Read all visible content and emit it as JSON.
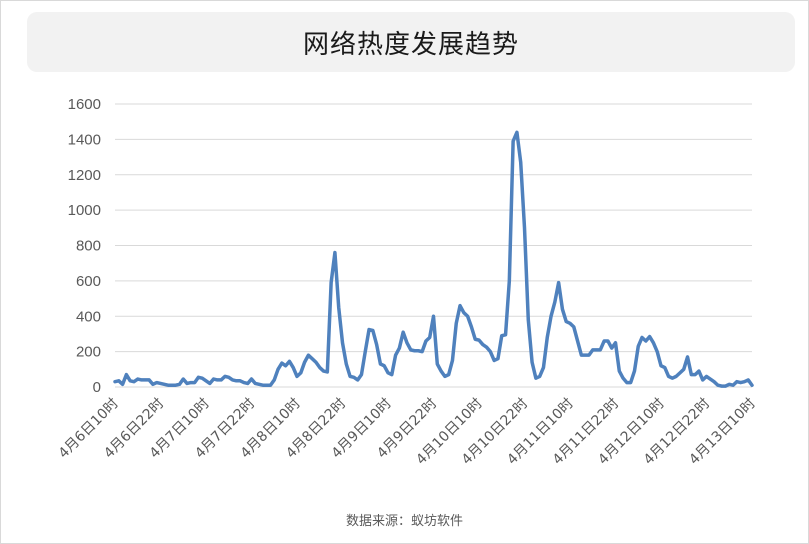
{
  "title": "网络热度发展趋势",
  "source": "数据来源：蚁坊软件",
  "colors": {
    "line": "#4f81bd",
    "grid": "#d9d9d9",
    "axis_text": "#595959",
    "title_bg": "#f2f2f2"
  },
  "chart_data": {
    "type": "line",
    "title": "网络热度发展趋势",
    "xlabel": "",
    "ylabel": "",
    "ylim": [
      0,
      1600
    ],
    "yticks": [
      0,
      200,
      400,
      600,
      800,
      1000,
      1200,
      1400,
      1600
    ],
    "grid": true,
    "legend": "none",
    "x_tick_labels": [
      "4月6日10时",
      "4月6日22时",
      "4月7日10时",
      "4月7日22时",
      "4月8日10时",
      "4月8日22时",
      "4月9日10时",
      "4月9日22时",
      "4月10日10时",
      "4月10日22时",
      "4月11日10时",
      "4月11日22时",
      "4月12日10时",
      "4月12日22时",
      "4月13日10时"
    ],
    "x_tick_index": [
      0,
      12,
      24,
      36,
      48,
      60,
      72,
      84,
      96,
      108,
      120,
      132,
      144,
      156,
      168
    ],
    "x_count": 169,
    "series": [
      {
        "values": [
          30,
          35,
          15,
          70,
          35,
          30,
          45,
          40,
          40,
          40,
          15,
          25,
          20,
          15,
          10,
          10,
          10,
          15,
          45,
          20,
          25,
          25,
          55,
          50,
          35,
          20,
          45,
          40,
          40,
          60,
          55,
          40,
          35,
          35,
          25,
          20,
          45,
          20,
          15,
          10,
          10,
          10,
          40,
          100,
          135,
          120,
          145,
          110,
          60,
          80,
          140,
          180,
          160,
          140,
          110,
          90,
          85,
          590,
          760,
          450,
          250,
          130,
          60,
          55,
          40,
          70,
          200,
          325,
          320,
          240,
          130,
          120,
          80,
          70,
          180,
          220,
          310,
          250,
          210,
          205,
          205,
          200,
          260,
          280,
          400,
          130,
          90,
          60,
          70,
          150,
          360,
          460,
          420,
          400,
          340,
          270,
          265,
          240,
          225,
          200,
          150,
          160,
          290,
          295,
          600,
          1390,
          1440,
          1270,
          900,
          380,
          140,
          50,
          60,
          110,
          280,
          400,
          480,
          590,
          440,
          370,
          360,
          340,
          260,
          180,
          180,
          180,
          210,
          210,
          210,
          260,
          260,
          220,
          250,
          90,
          50,
          25,
          25,
          90,
          230,
          280,
          260,
          285,
          250,
          200,
          120,
          110,
          60,
          50,
          60,
          80,
          100,
          170,
          70,
          70,
          90,
          40,
          60,
          45,
          30,
          10,
          5,
          5,
          15,
          10,
          30,
          25,
          30,
          40,
          10
        ]
      }
    ]
  }
}
